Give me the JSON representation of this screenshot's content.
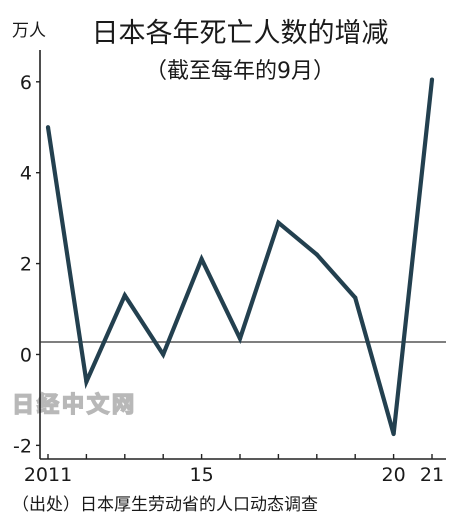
{
  "chart_data": {
    "type": "line",
    "title": "日本各年死亡人数的增减",
    "subtitle": "（截至每年的9月）",
    "unit_label": "万人",
    "x": [
      2011,
      2012,
      2013,
      2014,
      2015,
      2016,
      2017,
      2018,
      2019,
      2020,
      2021
    ],
    "x_tick_labels": [
      {
        "x": 2011,
        "label": "2011"
      },
      {
        "x": 2015,
        "label": "15"
      },
      {
        "x": 2020,
        "label": "20"
      },
      {
        "x": 2021,
        "label": "21"
      }
    ],
    "y_ticks": [
      "6",
      "4",
      "2",
      "0",
      "-2"
    ],
    "ylim": [
      -2.3,
      6.7
    ],
    "series": [
      {
        "values": [
          5.0,
          -0.6,
          1.3,
          0.0,
          2.1,
          0.35,
          2.9,
          2.2,
          1.25,
          -1.75,
          6.05
        ]
      }
    ],
    "source": "（出处）日本厚生劳动省的人口动态调查",
    "watermark": "日经中文网",
    "colors": {
      "line": "#23404f",
      "axis": "#222222",
      "zero_line": "#333333"
    }
  }
}
